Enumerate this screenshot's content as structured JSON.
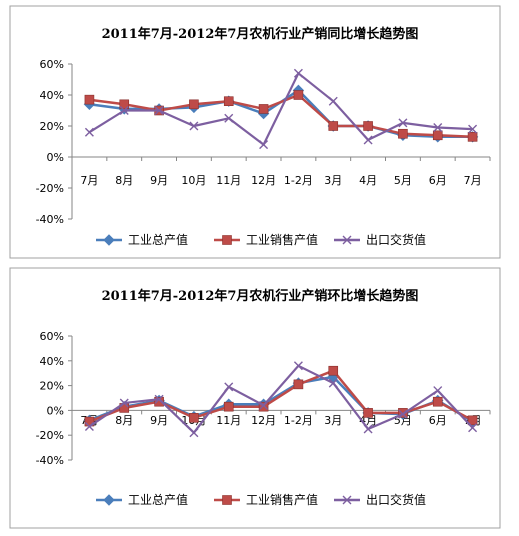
{
  "colors": {
    "series1": "#4a7ebb",
    "series2": "#be4b48",
    "series3": "#7d5fa0",
    "axis": "#868686",
    "frame": "#a0a0a0"
  },
  "chart_data": [
    {
      "type": "line",
      "title": "2011年7月-2012年7月农机行业产销同比增长趋势图",
      "categories": [
        "7月",
        "8月",
        "9月",
        "10月",
        "11月",
        "12月",
        "1-2月",
        "3月",
        "4月",
        "5月",
        "6月",
        "7月"
      ],
      "ylim": [
        -40,
        60
      ],
      "yticks": [
        "60%",
        "40%",
        "20%",
        "0%",
        "-20%",
        "-40%"
      ],
      "ytick_values": [
        60,
        40,
        20,
        0,
        -20,
        -40
      ],
      "legend_position": "bottom",
      "grid": false,
      "series": [
        {
          "name": "工业总产值",
          "marker": "diamond",
          "values": [
            34,
            31,
            31,
            32,
            36,
            28,
            43,
            20,
            20,
            14,
            13,
            13
          ]
        },
        {
          "name": "工业销售产值",
          "marker": "square",
          "values": [
            37,
            34,
            30,
            34,
            36,
            31,
            40,
            20,
            20,
            15,
            14,
            13
          ]
        },
        {
          "name": "出口交货值",
          "marker": "x",
          "values": [
            16,
            30,
            30,
            20,
            25,
            8,
            54,
            36,
            11,
            22,
            19,
            18
          ]
        }
      ]
    },
    {
      "type": "line",
      "title": "2011年7月-2012年7月农机行业产销环比增长趋势图",
      "categories": [
        "7月",
        "8月",
        "9月",
        "10月",
        "11月",
        "12月",
        "1-2月",
        "3月",
        "4月",
        "5月",
        "6月",
        "7月"
      ],
      "ylim": [
        -40,
        60
      ],
      "yticks": [
        "60%",
        "40%",
        "20%",
        "0%",
        "-20%",
        "-40%"
      ],
      "ytick_values": [
        60,
        40,
        20,
        0,
        -20,
        -40
      ],
      "legend_position": "bottom",
      "grid": false,
      "series": [
        {
          "name": "工业总产值",
          "marker": "diamond",
          "values": [
            -8,
            3,
            8,
            -5,
            5,
            5,
            22,
            27,
            -2,
            -3,
            8,
            -9
          ]
        },
        {
          "name": "工业销售产值",
          "marker": "square",
          "values": [
            -9,
            2,
            7,
            -6,
            3,
            3,
            21,
            32,
            -2,
            -2,
            7,
            -8
          ]
        },
        {
          "name": "出口交货值",
          "marker": "x",
          "values": [
            -13,
            6,
            9,
            -18,
            19,
            4,
            36,
            22,
            -15,
            -3,
            16,
            -14
          ]
        }
      ]
    }
  ]
}
